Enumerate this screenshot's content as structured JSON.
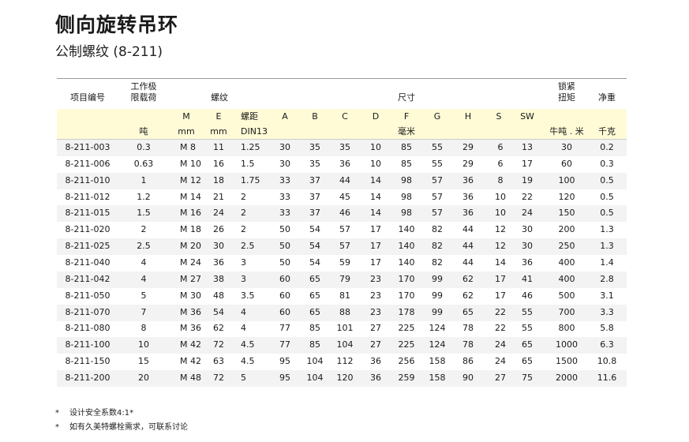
{
  "title": "侧向旋转吊环",
  "subtitle": "公制螺纹 (8-211)",
  "header": {
    "code": "项目编号",
    "load_line1": "工作极",
    "load_line2": "限载荷",
    "thread": "螺纹",
    "dims": "尺寸",
    "torque_line1": "锁紧",
    "torque_line2": "扭矩",
    "weight": "净重",
    "sub": {
      "M": "M",
      "E": "E",
      "pitch": "螺距",
      "A": "A",
      "B": "B",
      "C": "C",
      "D": "D",
      "F": "F",
      "G": "G",
      "H": "H",
      "S": "S",
      "SW": "SW"
    },
    "units": {
      "load": "吨",
      "M": "mm",
      "E": "mm",
      "pitch": "DIN13",
      "dims": "毫米",
      "torque": "牛吨 . 米",
      "weight": "千克"
    }
  },
  "colors": {
    "header_band": "#fffbd6",
    "alt_row": "#f3f3f3"
  },
  "rows": [
    [
      "8-211-003",
      "0.3",
      "M 8",
      "11",
      "1.25",
      "30",
      "35",
      "35",
      "10",
      "85",
      "55",
      "29",
      "6",
      "13",
      "30",
      "0.2"
    ],
    [
      "8-211-006",
      "0.63",
      "M 10",
      "16",
      "1.5",
      "30",
      "35",
      "36",
      "10",
      "85",
      "55",
      "29",
      "6",
      "17",
      "60",
      "0.3"
    ],
    [
      "8-211-010",
      "1",
      "M 12",
      "18",
      "1.75",
      "33",
      "37",
      "44",
      "14",
      "98",
      "57",
      "36",
      "8",
      "19",
      "100",
      "0.5"
    ],
    [
      "8-211-012",
      "1.2",
      "M 14",
      "21",
      "2",
      "33",
      "37",
      "45",
      "14",
      "98",
      "57",
      "36",
      "10",
      "22",
      "120",
      "0.5"
    ],
    [
      "8-211-015",
      "1.5",
      "M 16",
      "24",
      "2",
      "33",
      "37",
      "46",
      "14",
      "98",
      "57",
      "36",
      "10",
      "24",
      "150",
      "0.5"
    ],
    [
      "8-211-020",
      "2",
      "M 18",
      "26",
      "2",
      "50",
      "54",
      "57",
      "17",
      "140",
      "82",
      "44",
      "12",
      "30",
      "200",
      "1.3"
    ],
    [
      "8-211-025",
      "2.5",
      "M 20",
      "30",
      "2.5",
      "50",
      "54",
      "57",
      "17",
      "140",
      "82",
      "44",
      "12",
      "30",
      "250",
      "1.3"
    ],
    [
      "8-211-040",
      "4",
      "M 24",
      "36",
      "3",
      "50",
      "54",
      "59",
      "17",
      "140",
      "82",
      "44",
      "14",
      "36",
      "400",
      "1.4"
    ],
    [
      "8-211-042",
      "4",
      "M 27",
      "38",
      "3",
      "60",
      "65",
      "79",
      "23",
      "170",
      "99",
      "62",
      "17",
      "41",
      "400",
      "2.8"
    ],
    [
      "8-211-050",
      "5",
      "M 30",
      "48",
      "3.5",
      "60",
      "65",
      "81",
      "23",
      "170",
      "99",
      "62",
      "17",
      "46",
      "500",
      "3.1"
    ],
    [
      "8-211-070",
      "7",
      "M 36",
      "54",
      "4",
      "60",
      "65",
      "88",
      "23",
      "178",
      "99",
      "65",
      "22",
      "55",
      "700",
      "3.3"
    ],
    [
      "8-211-080",
      "8",
      "M 36",
      "62",
      "4",
      "77",
      "85",
      "101",
      "27",
      "225",
      "124",
      "78",
      "22",
      "55",
      "800",
      "5.8"
    ],
    [
      "8-211-100",
      "10",
      "M 42",
      "72",
      "4.5",
      "77",
      "85",
      "104",
      "27",
      "225",
      "124",
      "78",
      "24",
      "65",
      "1000",
      "6.3"
    ],
    [
      "8-211-150",
      "15",
      "M 42",
      "63",
      "4.5",
      "95",
      "104",
      "112",
      "36",
      "256",
      "158",
      "86",
      "24",
      "65",
      "1500",
      "10.8"
    ],
    [
      "8-211-200",
      "20",
      "M 48",
      "72",
      "5",
      "95",
      "104",
      "120",
      "36",
      "259",
      "158",
      "90",
      "27",
      "75",
      "2000",
      "11.6"
    ]
  ],
  "notes": [
    {
      "bullet": "*",
      "text": "设计安全系数4:1*"
    },
    {
      "bullet": "*",
      "text": "如有久美特螺栓需求，可联系讨论"
    }
  ]
}
